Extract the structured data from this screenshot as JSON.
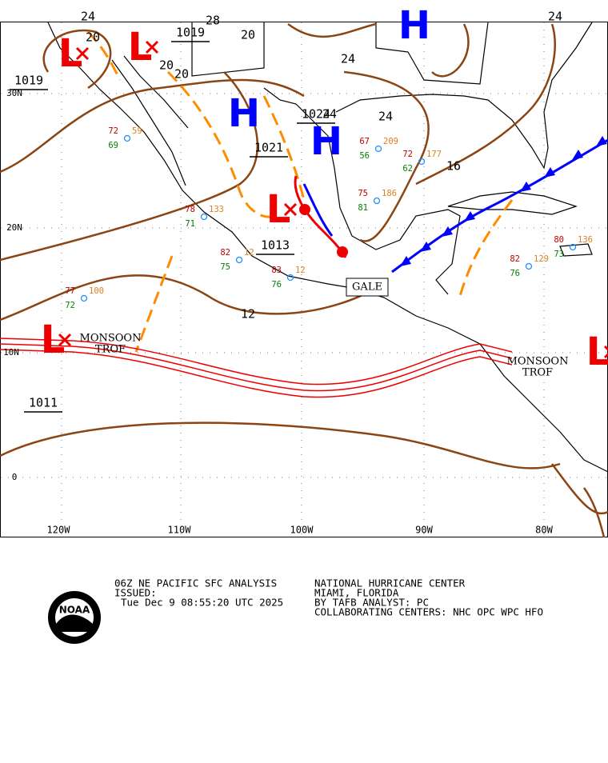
{
  "map": {
    "centers": [
      "L",
      "L",
      "H",
      "H",
      "H",
      "L",
      "L",
      "L"
    ],
    "pressure_labels": [
      "1019",
      "1019",
      "1021",
      "1024",
      "1013",
      "1011"
    ],
    "isobar_labels": [
      "24",
      "28",
      "20",
      "20",
      "20",
      "20",
      "24",
      "24",
      "24",
      "24",
      "16",
      "12"
    ],
    "lat_labels": [
      "30N",
      "20N",
      "10N",
      "0"
    ],
    "lon_labels": [
      "120W",
      "110W",
      "100W",
      "90W",
      "80W"
    ],
    "annotations": [
      "GALE",
      "MONSOON",
      "TROF",
      "MONSOON",
      "TROF"
    ],
    "stations": [
      {
        "temp": "78",
        "dew": "71",
        "wind": "133"
      },
      {
        "temp": "82",
        "dew": "75",
        "wind": "12"
      },
      {
        "temp": "83",
        "dew": "76",
        "wind": "12"
      },
      {
        "temp": "77",
        "dew": "72",
        "wind": "100"
      },
      {
        "temp": "72",
        "dew": "69",
        "wind": "59"
      },
      {
        "temp": "67",
        "dew": "56",
        "wind": "209"
      },
      {
        "temp": "72",
        "dew": "62",
        "wind": "177"
      },
      {
        "temp": "75",
        "dew": "81",
        "wind": "186"
      },
      {
        "temp": "82",
        "dew": "76",
        "wind": "129"
      },
      {
        "temp": "80",
        "dew": "73",
        "wind": "136"
      }
    ]
  },
  "footer": {
    "left": [
      "06Z NE PACIFIC SFC ANALYSIS",
      "ISSUED:",
      "Tue Dec 9 08:55:20 UTC 2025"
    ],
    "right": [
      "NATIONAL HURRICANE CENTER",
      "MIAMI, FLORIDA",
      "BY TAFB ANALYST: PC",
      "COLLABORATING CENTERS: NHC OPC WPC HFO"
    ],
    "logo": "NOAA"
  }
}
